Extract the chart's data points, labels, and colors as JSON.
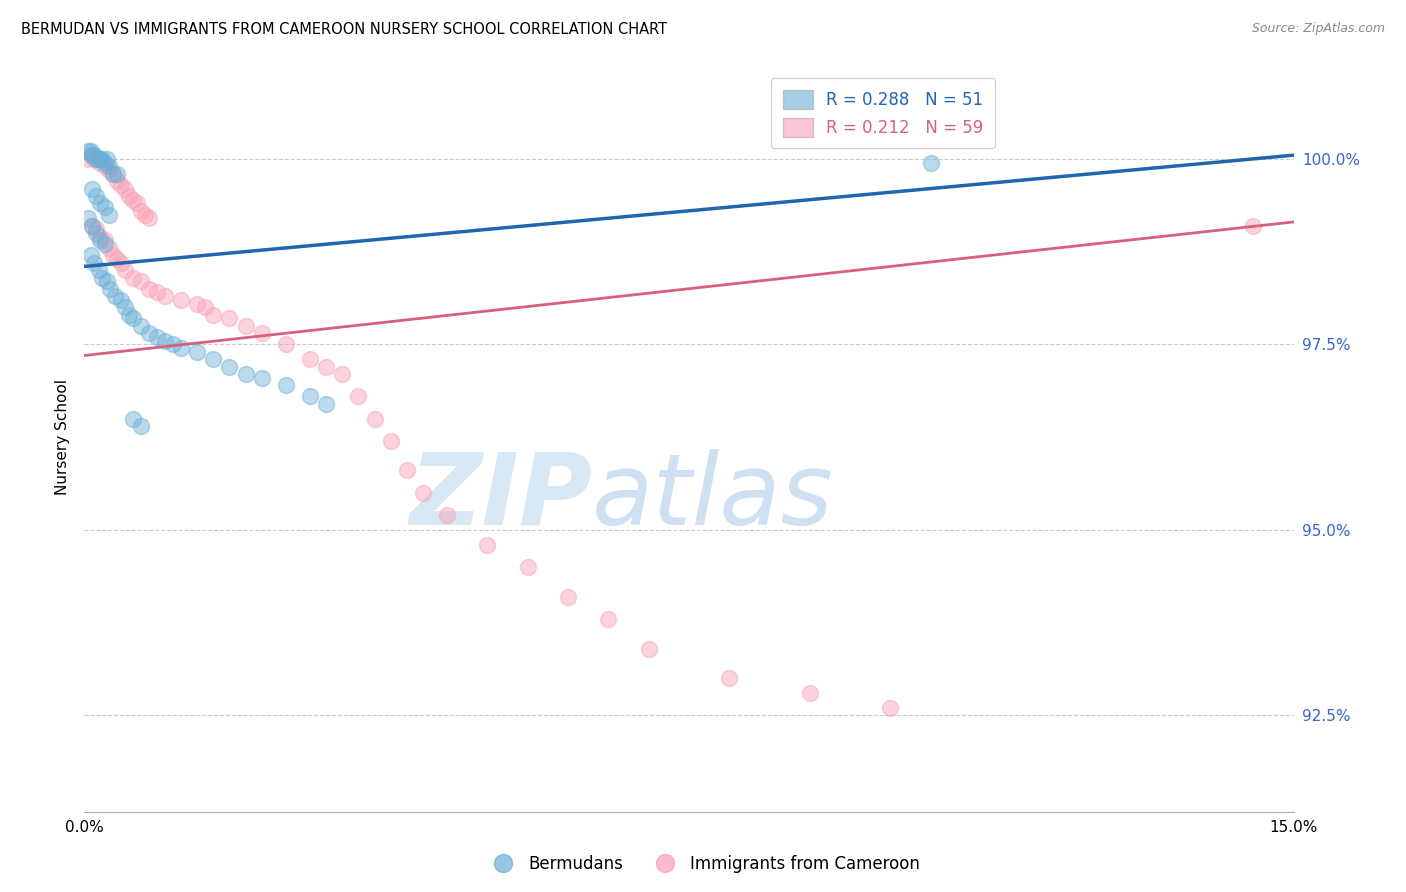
{
  "title": "BERMUDAN VS IMMIGRANTS FROM CAMEROON NURSERY SCHOOL CORRELATION CHART",
  "source": "Source: ZipAtlas.com",
  "xlabel_ticks": [
    "0.0%",
    "15.0%"
  ],
  "xlabel_tick_vals": [
    0.0,
    15.0
  ],
  "ylabel_ticks": [
    "92.5%",
    "95.0%",
    "97.5%",
    "100.0%"
  ],
  "ylabel_tick_vals": [
    92.5,
    95.0,
    97.5,
    100.0
  ],
  "xlim": [
    0.0,
    15.0
  ],
  "ylim": [
    91.2,
    101.3
  ],
  "ylabel": "Nursery School",
  "legend_label_blue": "Bermudans",
  "legend_label_pink": "Immigrants from Cameroon",
  "R_blue": 0.288,
  "N_blue": 51,
  "R_pink": 0.212,
  "N_pink": 59,
  "blue_color": "#6baed6",
  "pink_color": "#fa9fb5",
  "blue_line_color": "#2166ac",
  "pink_line_color": "#d6617b",
  "watermark_zip": "ZIP",
  "watermark_atlas": "atlas",
  "blue_x": [
    0.05,
    0.08,
    0.1,
    0.12,
    0.15,
    0.18,
    0.2,
    0.22,
    0.25,
    0.28,
    0.3,
    0.35,
    0.4,
    0.1,
    0.15,
    0.2,
    0.25,
    0.3,
    0.05,
    0.1,
    0.15,
    0.2,
    0.25,
    0.08,
    0.12,
    0.18,
    0.22,
    0.28,
    0.32,
    0.38,
    0.45,
    0.5,
    0.55,
    0.6,
    0.7,
    0.8,
    0.9,
    1.0,
    1.1,
    1.2,
    1.4,
    1.6,
    1.8,
    2.0,
    2.2,
    2.5,
    2.8,
    3.0,
    0.6,
    0.7,
    10.5
  ],
  "blue_y": [
    100.1,
    100.1,
    100.05,
    100.05,
    100.0,
    100.0,
    100.0,
    100.0,
    99.95,
    100.0,
    99.9,
    99.8,
    99.8,
    99.6,
    99.5,
    99.4,
    99.35,
    99.25,
    99.2,
    99.1,
    99.0,
    98.9,
    98.85,
    98.7,
    98.6,
    98.5,
    98.4,
    98.35,
    98.25,
    98.15,
    98.1,
    98.0,
    97.9,
    97.85,
    97.75,
    97.65,
    97.6,
    97.55,
    97.5,
    97.45,
    97.4,
    97.3,
    97.2,
    97.1,
    97.05,
    96.95,
    96.8,
    96.7,
    96.5,
    96.4,
    99.95
  ],
  "pink_x": [
    0.05,
    0.08,
    0.1,
    0.12,
    0.15,
    0.18,
    0.2,
    0.25,
    0.3,
    0.35,
    0.4,
    0.45,
    0.5,
    0.55,
    0.6,
    0.65,
    0.7,
    0.75,
    0.8,
    0.1,
    0.15,
    0.2,
    0.25,
    0.3,
    0.35,
    0.4,
    0.45,
    0.5,
    0.6,
    0.7,
    0.8,
    0.9,
    1.0,
    1.2,
    1.4,
    1.5,
    1.6,
    1.8,
    2.0,
    2.2,
    2.5,
    2.8,
    3.0,
    3.2,
    3.4,
    3.6,
    3.8,
    4.0,
    4.2,
    4.5,
    5.0,
    5.5,
    6.0,
    6.5,
    7.0,
    8.0,
    9.0,
    10.0,
    14.5
  ],
  "pink_y": [
    100.0,
    100.05,
    100.05,
    100.0,
    100.0,
    100.0,
    99.95,
    99.9,
    99.85,
    99.8,
    99.7,
    99.65,
    99.6,
    99.5,
    99.45,
    99.4,
    99.3,
    99.25,
    99.2,
    99.1,
    99.05,
    98.95,
    98.9,
    98.8,
    98.7,
    98.65,
    98.6,
    98.5,
    98.4,
    98.35,
    98.25,
    98.2,
    98.15,
    98.1,
    98.05,
    98.0,
    97.9,
    97.85,
    97.75,
    97.65,
    97.5,
    97.3,
    97.2,
    97.1,
    96.8,
    96.5,
    96.2,
    95.8,
    95.5,
    95.2,
    94.8,
    94.5,
    94.1,
    93.8,
    93.4,
    93.0,
    92.8,
    92.6,
    99.1
  ],
  "blue_trend_x0": 0.0,
  "blue_trend_y0": 98.55,
  "blue_trend_x1": 15.0,
  "blue_trend_y1": 100.05,
  "pink_trend_x0": 0.0,
  "pink_trend_y0": 97.35,
  "pink_trend_x1": 15.0,
  "pink_trend_y1": 99.15
}
